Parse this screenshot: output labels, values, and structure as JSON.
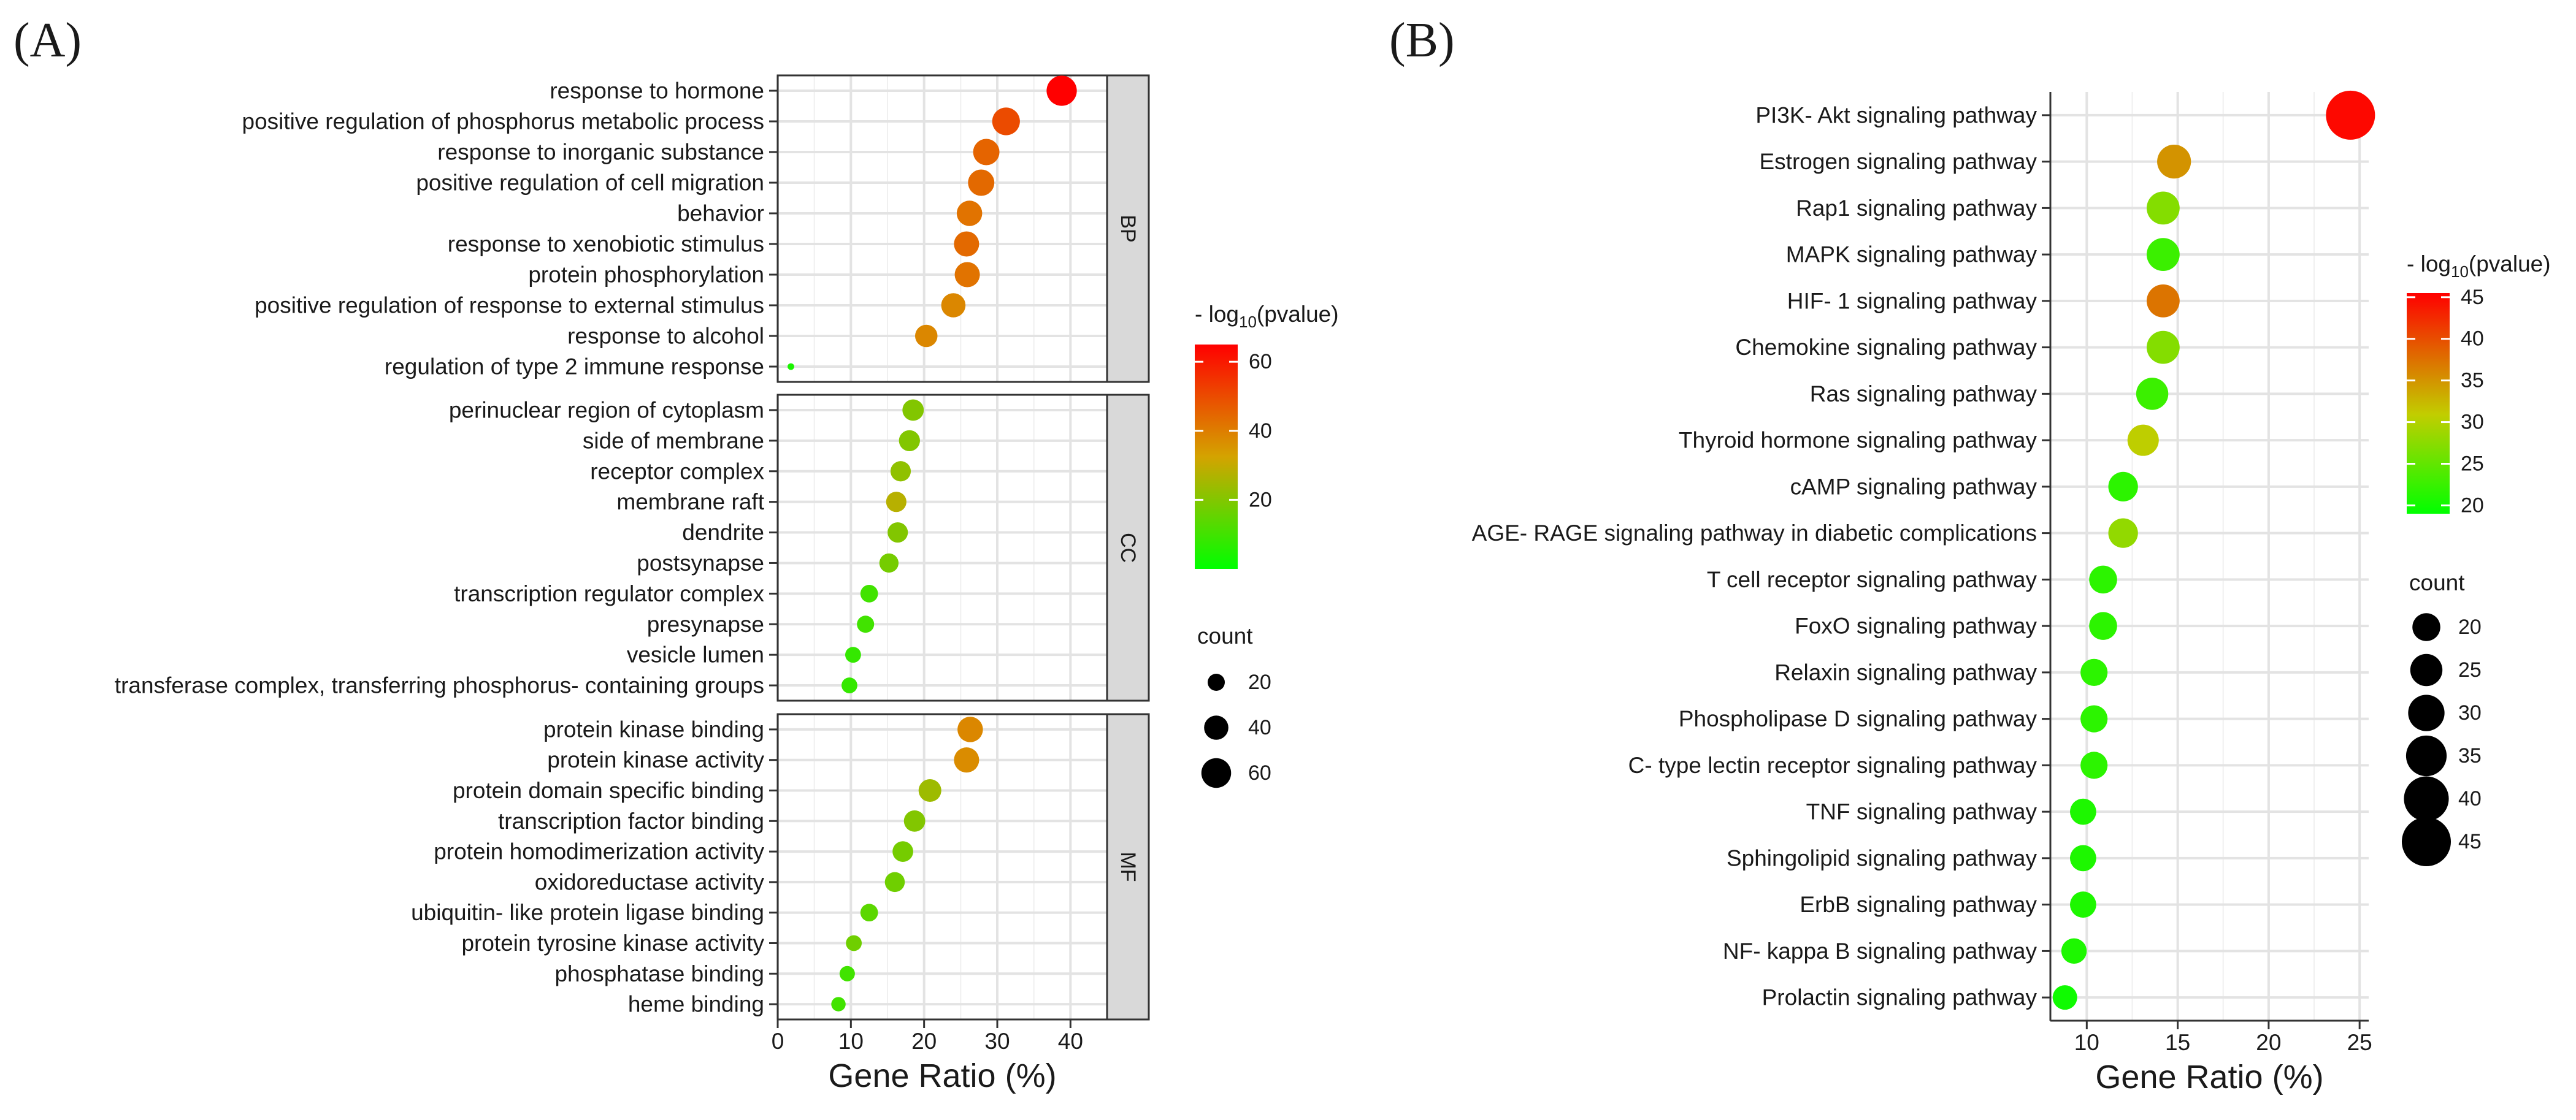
{
  "figure": {
    "panel_a_tag": "(A)",
    "panel_b_tag": "(B)"
  },
  "chart_data": [
    {
      "type": "scatter",
      "subtype": "bubble",
      "panel": "A",
      "xlabel": "Gene Ratio (%)",
      "xlim": [
        0,
        45
      ],
      "xticks": [
        0,
        10,
        20,
        30,
        40
      ],
      "grid": true,
      "color_legend": {
        "title_main": "- log",
        "title_sub": "10",
        "title_tail": "(pvalue)",
        "min": 0,
        "max": 65,
        "ticks": [
          20,
          40,
          60
        ],
        "colors": [
          "#00ff00",
          "#d4a300",
          "#ff0000"
        ]
      },
      "size_legend": {
        "title": "count",
        "values": [
          20,
          40,
          60
        ]
      },
      "facets": [
        {
          "label": "BP",
          "terms": [
            {
              "term": "response to hormone",
              "ratio": 38.8,
              "neglog10p": 65,
              "count": 62
            },
            {
              "term": "positive regulation of phosphorus metabolic process",
              "ratio": 31.2,
              "neglog10p": 50,
              "count": 52
            },
            {
              "term": "response to inorganic substance",
              "ratio": 28.5,
              "neglog10p": 45,
              "count": 47
            },
            {
              "term": "positive regulation of cell migration",
              "ratio": 27.8,
              "neglog10p": 44,
              "count": 47
            },
            {
              "term": "behavior",
              "ratio": 26.2,
              "neglog10p": 42,
              "count": 44
            },
            {
              "term": "response to xenobiotic stimulus",
              "ratio": 25.8,
              "neglog10p": 44,
              "count": 43
            },
            {
              "term": "protein phosphorylation",
              "ratio": 25.9,
              "neglog10p": 42,
              "count": 43
            },
            {
              "term": "positive regulation of response to external stimulus",
              "ratio": 24.0,
              "neglog10p": 38,
              "count": 40
            },
            {
              "term": "response to alcohol",
              "ratio": 20.3,
              "neglog10p": 38,
              "count": 34
            },
            {
              "term": "regulation of type 2 immune response",
              "ratio": 1.8,
              "neglog10p": 4,
              "count": 3
            }
          ]
        },
        {
          "label": "CC",
          "terms": [
            {
              "term": "perinuclear region of cytoplasm",
              "ratio": 18.5,
              "neglog10p": 20,
              "count": 31
            },
            {
              "term": "side of membrane",
              "ratio": 18.0,
              "neglog10p": 20,
              "count": 30
            },
            {
              "term": "receptor complex",
              "ratio": 16.8,
              "neglog10p": 22,
              "count": 28
            },
            {
              "term": "membrane raft",
              "ratio": 16.2,
              "neglog10p": 28,
              "count": 28
            },
            {
              "term": "dendrite",
              "ratio": 16.4,
              "neglog10p": 20,
              "count": 28
            },
            {
              "term": "postsynapse",
              "ratio": 15.2,
              "neglog10p": 18,
              "count": 25
            },
            {
              "term": "transcription regulator complex",
              "ratio": 12.5,
              "neglog10p": 10,
              "count": 21
            },
            {
              "term": "presynapse",
              "ratio": 12.0,
              "neglog10p": 10,
              "count": 20
            },
            {
              "term": "vesicle lumen",
              "ratio": 10.3,
              "neglog10p": 8,
              "count": 17
            },
            {
              "term": "transferase complex, transferring phosphorus- containing groups",
              "ratio": 9.8,
              "neglog10p": 8,
              "count": 17
            }
          ]
        },
        {
          "label": "MF",
          "terms": [
            {
              "term": "protein kinase binding",
              "ratio": 26.3,
              "neglog10p": 38,
              "count": 44
            },
            {
              "term": "protein kinase activity",
              "ratio": 25.8,
              "neglog10p": 37,
              "count": 43
            },
            {
              "term": "protein domain specific binding",
              "ratio": 20.8,
              "neglog10p": 24,
              "count": 35
            },
            {
              "term": "transcription factor binding",
              "ratio": 18.7,
              "neglog10p": 20,
              "count": 31
            },
            {
              "term": "protein homodimerization activity",
              "ratio": 17.1,
              "neglog10p": 18,
              "count": 29
            },
            {
              "term": "oxidoreductase activity",
              "ratio": 16.0,
              "neglog10p": 17,
              "count": 27
            },
            {
              "term": "ubiquitin- like protein ligase binding",
              "ratio": 12.5,
              "neglog10p": 14,
              "count": 21
            },
            {
              "term": "protein tyrosine kinase activity",
              "ratio": 10.4,
              "neglog10p": 17,
              "count": 17
            },
            {
              "term": "phosphatase binding",
              "ratio": 9.5,
              "neglog10p": 10,
              "count": 16
            },
            {
              "term": "heme binding",
              "ratio": 8.3,
              "neglog10p": 10,
              "count": 14
            }
          ]
        }
      ]
    },
    {
      "type": "scatter",
      "subtype": "bubble",
      "panel": "B",
      "xlabel": "Gene Ratio (%)",
      "xlim": [
        8,
        25.5
      ],
      "xticks": [
        10,
        15,
        20,
        25
      ],
      "grid": true,
      "color_legend": {
        "title_main": "- log",
        "title_sub": "10",
        "title_tail": "(pvalue)",
        "min": 19,
        "max": 45.5,
        "ticks": [
          20,
          25,
          30,
          35,
          40,
          45
        ],
        "colors": [
          "#00ff00",
          "#c2cd00",
          "#ff0000"
        ]
      },
      "size_legend": {
        "title": "count",
        "values": [
          20,
          25,
          30,
          35,
          40,
          45
        ]
      },
      "terms": [
        {
          "term": "PI3K- Akt signaling pathway",
          "ratio": 24.5,
          "neglog10p": 45,
          "count": 45
        },
        {
          "term": "Estrogen signaling pathway",
          "ratio": 14.8,
          "neglog10p": 36,
          "count": 27
        },
        {
          "term": "Rap1 signaling pathway",
          "ratio": 14.2,
          "neglog10p": 28,
          "count": 26
        },
        {
          "term": "MAPK signaling pathway",
          "ratio": 14.2,
          "neglog10p": 23,
          "count": 26
        },
        {
          "term": "HIF- 1 signaling pathway",
          "ratio": 14.2,
          "neglog10p": 38,
          "count": 26
        },
        {
          "term": "Chemokine signaling pathway",
          "ratio": 14.2,
          "neglog10p": 28,
          "count": 26
        },
        {
          "term": "Ras signaling pathway",
          "ratio": 13.6,
          "neglog10p": 23,
          "count": 25
        },
        {
          "term": "Thyroid hormone signaling pathway",
          "ratio": 13.1,
          "neglog10p": 32,
          "count": 24
        },
        {
          "term": "cAMP signaling pathway",
          "ratio": 12.0,
          "neglog10p": 22,
          "count": 22
        },
        {
          "term": "AGE- RAGE signaling pathway in diabetic complications",
          "ratio": 12.0,
          "neglog10p": 29,
          "count": 22
        },
        {
          "term": "T cell receptor signaling pathway",
          "ratio": 10.9,
          "neglog10p": 22,
          "count": 20
        },
        {
          "term": "FoxO signaling pathway",
          "ratio": 10.9,
          "neglog10p": 22,
          "count": 20
        },
        {
          "term": "Relaxin signaling pathway",
          "ratio": 10.4,
          "neglog10p": 22,
          "count": 19
        },
        {
          "term": "Phospholipase D signaling pathway",
          "ratio": 10.4,
          "neglog10p": 22,
          "count": 19
        },
        {
          "term": "C- type lectin receptor signaling pathway",
          "ratio": 10.4,
          "neglog10p": 22,
          "count": 19
        },
        {
          "term": "TNF signaling pathway",
          "ratio": 9.8,
          "neglog10p": 21,
          "count": 18
        },
        {
          "term": "Sphingolipid signaling pathway",
          "ratio": 9.8,
          "neglog10p": 21,
          "count": 18
        },
        {
          "term": "ErbB signaling pathway",
          "ratio": 9.8,
          "neglog10p": 21,
          "count": 18
        },
        {
          "term": "NF- kappa B signaling pathway",
          "ratio": 9.3,
          "neglog10p": 21,
          "count": 17
        },
        {
          "term": "Prolactin signaling pathway",
          "ratio": 8.8,
          "neglog10p": 20,
          "count": 16
        }
      ]
    }
  ]
}
